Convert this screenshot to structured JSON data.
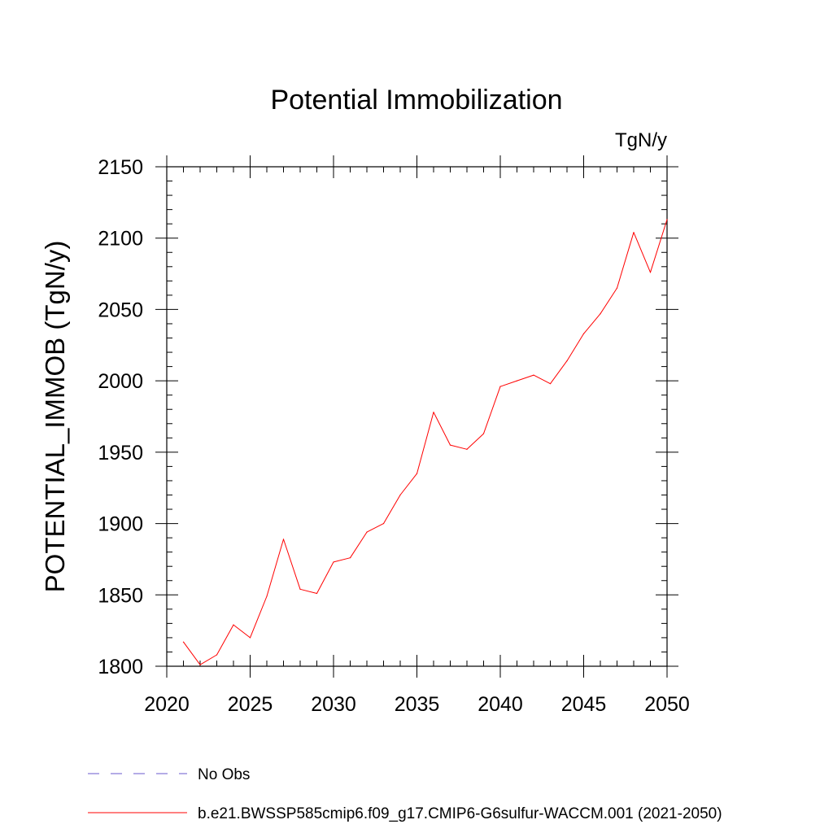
{
  "chart_data": {
    "type": "line",
    "title": "Potential Immobilization",
    "units_label": "TgN/y",
    "ylabel": "POTENTIAL_IMMOB  (TgN/y)",
    "xlabel": "",
    "xlim": [
      2020,
      2050
    ],
    "ylim": [
      1800,
      2150
    ],
    "x_ticks": [
      2020,
      2025,
      2030,
      2035,
      2040,
      2045,
      2050
    ],
    "y_ticks": [
      1800,
      1850,
      1900,
      1950,
      2000,
      2050,
      2100,
      2150
    ],
    "x_minor_step": 1,
    "y_minor_step": 10,
    "grid": false,
    "legend_position": "bottom",
    "series": [
      {
        "name": "b.e21.BWSSP585cmip6.f09_g17.CMIP6-G6sulfur-WACCM.001 (2021-2050)",
        "color": "#ff0000",
        "style": "solid",
        "x": [
          2021,
          2022,
          2023,
          2024,
          2025,
          2026,
          2027,
          2028,
          2029,
          2030,
          2031,
          2032,
          2033,
          2034,
          2035,
          2036,
          2037,
          2038,
          2039,
          2040,
          2041,
          2042,
          2043,
          2044,
          2045,
          2046,
          2047,
          2048,
          2049,
          2050
        ],
        "values": [
          1817,
          1801,
          1808,
          1829,
          1820,
          1849,
          1889,
          1854,
          1851,
          1873,
          1876,
          1894,
          1900,
          1920,
          1935,
          1978,
          1955,
          1952,
          1963,
          1996,
          2000,
          2004,
          1998,
          2014,
          2033,
          2047,
          2065,
          2104,
          2076,
          2113
        ]
      }
    ],
    "legend": [
      {
        "label": "No Obs",
        "color": "#6a5acd",
        "style": "dashed"
      },
      {
        "label": "b.e21.BWSSP585cmip6.f09_g17.CMIP6-G6sulfur-WACCM.001 (2021-2050)",
        "color": "#ff0000",
        "style": "solid"
      }
    ]
  }
}
